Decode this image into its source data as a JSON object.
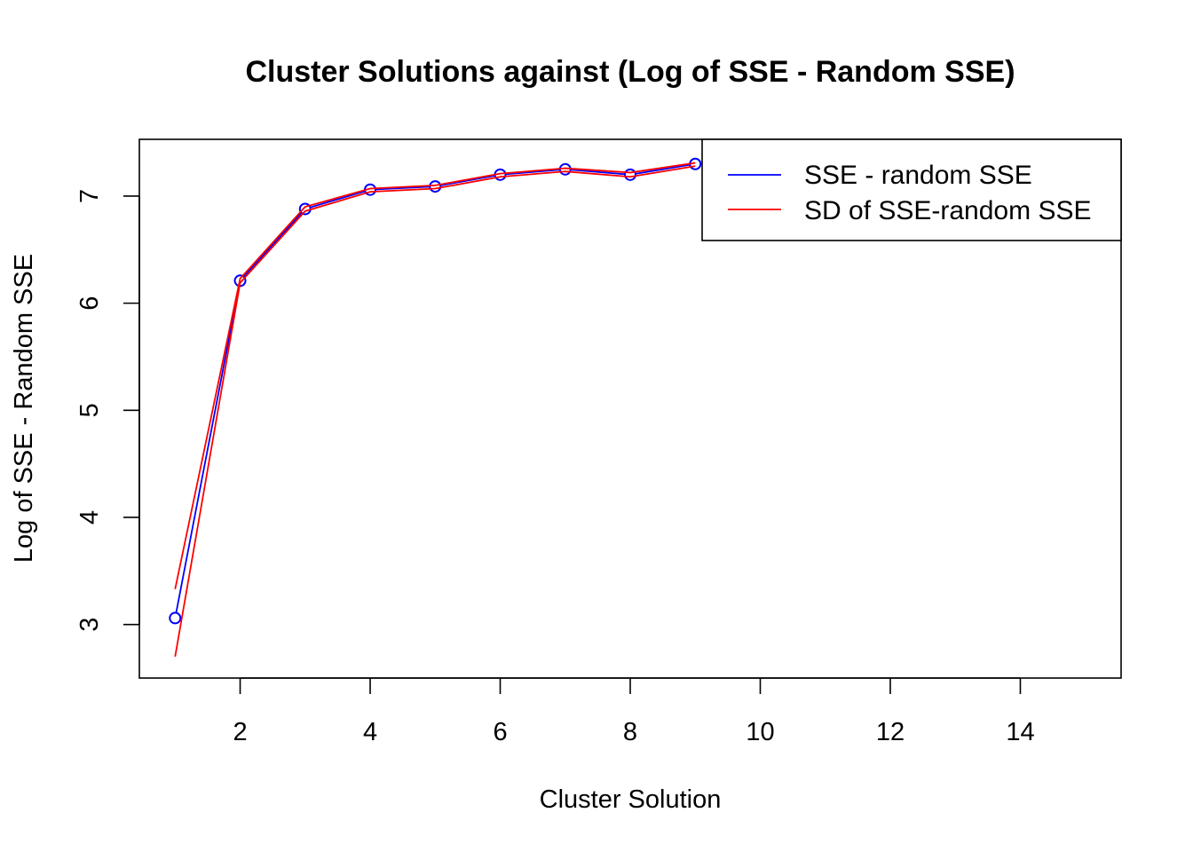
{
  "chart_data": {
    "type": "line",
    "title": "Cluster Solutions against (Log of SSE - Random SSE)",
    "xlabel": "Cluster Solution",
    "ylabel": "Log of SSE - Random SSE",
    "xlim": [
      0.45,
      15.55
    ],
    "ylim": [
      2.5,
      7.53
    ],
    "x_ticks": [
      2,
      4,
      6,
      8,
      10,
      12,
      14
    ],
    "y_ticks": [
      3,
      4,
      5,
      6,
      7
    ],
    "grid": false,
    "legend_position": "top-right",
    "series": [
      {
        "name": "SSE - random SSE",
        "color": "#0000ff",
        "marker": "circle",
        "x": [
          1,
          2,
          3,
          4,
          5,
          6,
          7,
          8,
          9
        ],
        "y": [
          3.06,
          6.21,
          6.88,
          7.06,
          7.09,
          7.2,
          7.25,
          7.2,
          7.3
        ]
      },
      {
        "name": "SD of SSE-random SSE",
        "color": "#ff0000",
        "marker": "none",
        "bands": {
          "x": [
            1,
            2,
            3,
            4,
            5,
            6,
            7,
            8,
            9
          ],
          "upper": [
            3.33,
            6.23,
            6.9,
            7.07,
            7.1,
            7.21,
            7.26,
            7.22,
            7.31
          ],
          "lower": [
            2.7,
            6.19,
            6.86,
            7.04,
            7.07,
            7.18,
            7.23,
            7.18,
            7.28
          ]
        }
      }
    ]
  }
}
